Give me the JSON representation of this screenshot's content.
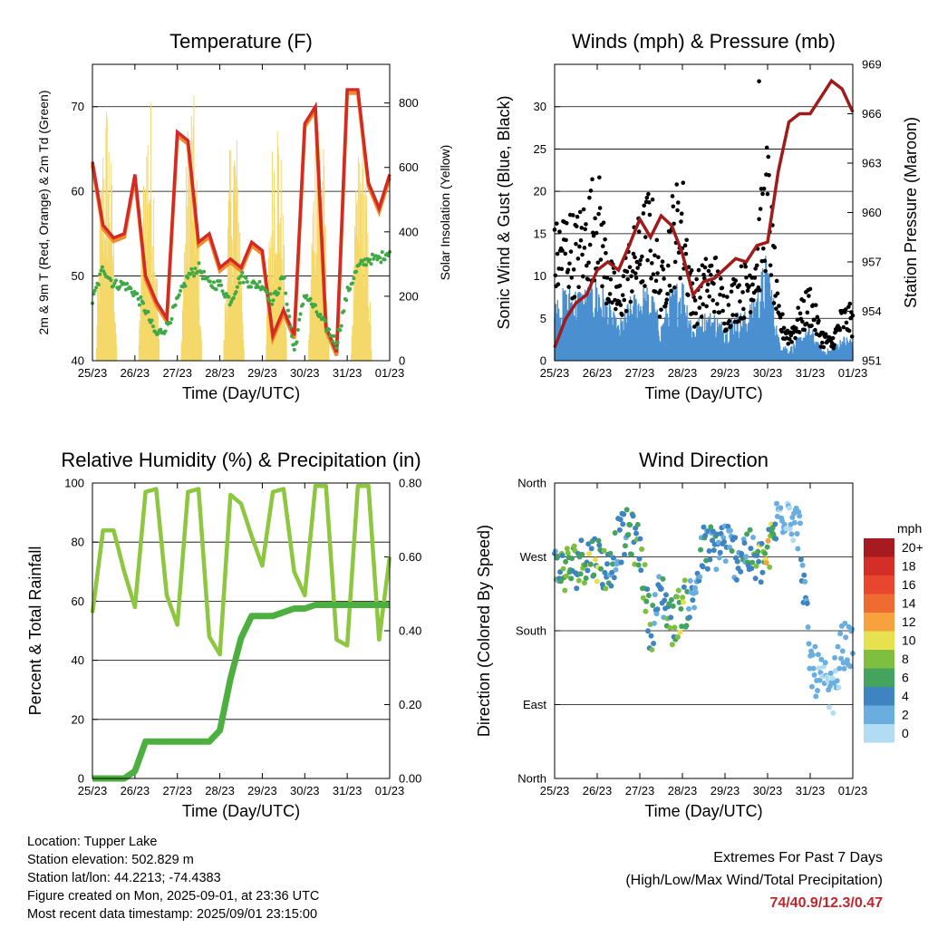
{
  "panels": {
    "temperature": {
      "title": "Temperature (F)",
      "xlabel": "Time (Day/UTC)",
      "ylabel_left": "2m & 9m T (Red, Orange) & 2m Td (Green)",
      "ylabel_right": "Solar Insolation (Yellow)",
      "xticks": [
        "25/23",
        "26/23",
        "27/23",
        "28/23",
        "29/23",
        "30/23",
        "31/23",
        "01/23"
      ],
      "yticks_left": [
        "40",
        "50",
        "60",
        "70"
      ],
      "yticks_right": [
        "0",
        "200",
        "400",
        "600",
        "800"
      ]
    },
    "winds": {
      "title": "Winds (mph) & Pressure (mb)",
      "xlabel": "Time (Day/UTC)",
      "ylabel_left": "Sonic Wind & Gust (Blue, Black)",
      "ylabel_right": "Station Pressure (Maroon)",
      "xticks": [
        "25/23",
        "26/23",
        "27/23",
        "28/23",
        "29/23",
        "30/23",
        "31/23",
        "01/23"
      ],
      "yticks_left": [
        "0",
        "5",
        "10",
        "15",
        "20",
        "25",
        "30"
      ],
      "yticks_right": [
        "951",
        "954",
        "957",
        "960",
        "963",
        "966",
        "969"
      ]
    },
    "humidity": {
      "title": "Relative Humidity (%) & Precipitation (in)",
      "xlabel": "Time (Day/UTC)",
      "ylabel_left": "Percent & Total Rainfall",
      "xticks": [
        "25/23",
        "26/23",
        "27/23",
        "28/23",
        "29/23",
        "30/23",
        "31/23",
        "01/23"
      ],
      "yticks_left": [
        "0",
        "20",
        "40",
        "60",
        "80",
        "100"
      ],
      "yticks_right": [
        "0.00",
        "0.20",
        "0.40",
        "0.60",
        "0.80"
      ]
    },
    "direction": {
      "title": "Wind Direction",
      "xlabel": "Time (Day/UTC)",
      "ylabel_left": "Direction (Colored By Speed)",
      "xticks": [
        "25/23",
        "26/23",
        "27/23",
        "28/23",
        "29/23",
        "30/23",
        "31/23",
        "01/23"
      ],
      "yticks_left": [
        "North",
        "East",
        "South",
        "West",
        "North"
      ],
      "legend_title": "mph",
      "legend_labels": [
        "20+",
        "18",
        "16",
        "14",
        "12",
        "10",
        "8",
        "6",
        "4",
        "2",
        "0"
      ],
      "legend_colors": [
        "#a51b1f",
        "#d42e27",
        "#e8462f",
        "#f06b32",
        "#f7a13f",
        "#e8e14f",
        "#7fbf3f",
        "#44a35c",
        "#3e84c0",
        "#6aaee0",
        "#b2dcf3"
      ]
    }
  },
  "colors": {
    "temp_2m": "#d42a25",
    "temp_9m": "#f08a2c",
    "dewpoint": "#3fa945",
    "insolation": "#f5d86a",
    "gust": "#000000",
    "wind": "#4a90d0",
    "pressure": "#a01c1c",
    "rh": "#8dc63f",
    "precip": "#4caf3f"
  },
  "chart_data": [
    {
      "type": "line",
      "title": "Temperature (F)",
      "xlabel": "Time (Day/UTC)",
      "ylabel": "2m & 9m T (Red, Orange) & 2m Td (Green)",
      "ylabel_right": "Solar Insolation (Yellow)",
      "x": [
        0,
        0.25,
        0.5,
        0.75,
        1.0,
        1.25,
        1.5,
        1.75,
        2.0,
        2.25,
        2.5,
        2.75,
        3.0,
        3.25,
        3.5,
        3.75,
        4.0,
        4.25,
        4.5,
        4.75,
        5.0,
        5.25,
        5.5,
        5.75,
        6.0,
        6.25,
        6.5,
        6.75,
        7.0
      ],
      "xlim": [
        0,
        7
      ],
      "ylim": [
        40,
        75
      ],
      "y2lim": [
        0,
        920
      ],
      "series": [
        {
          "name": "2m T",
          "values": [
            63.5,
            56,
            54.5,
            55,
            62,
            50,
            47,
            45,
            67,
            66,
            54,
            55,
            51,
            52,
            51,
            54,
            53,
            43,
            46,
            43,
            68,
            70,
            44,
            41,
            72,
            72,
            61,
            58,
            62
          ]
        },
        {
          "name": "2m Td",
          "values": [
            47,
            51,
            49,
            49,
            48,
            46,
            43,
            44,
            47,
            50,
            51,
            49,
            49,
            47,
            50,
            49,
            49,
            47,
            50,
            41,
            48,
            46,
            44,
            42,
            48,
            51,
            52,
            52,
            53
          ]
        },
        {
          "name": "Solar Insolation",
          "values": [
            0,
            400,
            850,
            0,
            0,
            420,
            860,
            0,
            0,
            880,
            850,
            0,
            0,
            440,
            800,
            0,
            0,
            460,
            860,
            0,
            0,
            900,
            880,
            0,
            0,
            750,
            500,
            0,
            0
          ]
        }
      ]
    },
    {
      "type": "line",
      "title": "Winds (mph) & Pressure (mb)",
      "xlabel": "Time (Day/UTC)",
      "ylabel": "Sonic Wind & Gust (Blue, Black)",
      "ylabel_right": "Station Pressure (Maroon)",
      "xlim": [
        0,
        7
      ],
      "ylim": [
        0,
        35
      ],
      "y2lim": [
        951,
        969
      ],
      "x": [
        0,
        0.25,
        0.5,
        0.75,
        1.0,
        1.25,
        1.5,
        1.75,
        2.0,
        2.25,
        2.5,
        2.75,
        3.0,
        3.25,
        3.5,
        3.75,
        4.0,
        4.25,
        4.5,
        4.75,
        5.0,
        5.25,
        5.5,
        5.75,
        6.0,
        6.25,
        6.5,
        6.75,
        7.0
      ],
      "series": [
        {
          "name": "Gust",
          "values": [
            12,
            14,
            13,
            15,
            18,
            10,
            7,
            11,
            13,
            16,
            8,
            15,
            17,
            7,
            9,
            10,
            6,
            8,
            9,
            12,
            20,
            5,
            3,
            5,
            7,
            3,
            2,
            5,
            5
          ]
        },
        {
          "name": "Wind",
          "values": [
            5,
            6,
            6,
            6,
            7,
            5,
            3,
            5,
            6,
            6,
            3,
            6,
            7,
            3,
            4,
            4,
            3,
            4,
            4,
            6,
            9,
            2,
            1,
            2,
            3,
            1,
            1,
            2,
            2
          ]
        },
        {
          "name": "Pressure",
          "values": [
            951.8,
            953.5,
            954.5,
            955,
            956.5,
            957,
            956.5,
            958,
            959.6,
            958.5,
            959.8,
            959.2,
            957.5,
            955,
            955.8,
            956,
            956.6,
            957.2,
            957,
            958,
            958.2,
            962.5,
            965.5,
            966,
            966,
            967,
            968,
            967.5,
            966.1
          ]
        }
      ]
    },
    {
      "type": "line",
      "title": "Relative Humidity (%) & Precipitation (in)",
      "xlabel": "Time (Day/UTC)",
      "ylabel": "Percent & Total Rainfall",
      "xlim": [
        0,
        7
      ],
      "ylim": [
        0,
        100
      ],
      "y2lim": [
        0,
        0.8
      ],
      "x": [
        0,
        0.25,
        0.5,
        0.75,
        1.0,
        1.25,
        1.5,
        1.75,
        2.0,
        2.25,
        2.5,
        2.75,
        3.0,
        3.25,
        3.5,
        3.75,
        4.0,
        4.25,
        4.5,
        4.75,
        5.0,
        5.25,
        5.5,
        5.75,
        6.0,
        6.25,
        6.5,
        6.75,
        7.0
      ],
      "series": [
        {
          "name": "RH",
          "values": [
            56,
            84,
            84,
            70,
            58,
            97,
            98,
            62,
            52,
            97,
            98,
            48,
            42,
            96,
            93,
            82,
            72,
            97,
            98,
            70,
            62,
            99,
            99,
            47,
            45,
            99,
            99,
            47,
            75
          ]
        },
        {
          "name": "Precipitation",
          "values": [
            0,
            0,
            0,
            0,
            0.02,
            0.1,
            0.1,
            0.1,
            0.1,
            0.1,
            0.1,
            0.1,
            0.13,
            0.27,
            0.38,
            0.44,
            0.44,
            0.44,
            0.45,
            0.46,
            0.46,
            0.47,
            0.47,
            0.47,
            0.47,
            0.47,
            0.47,
            0.47,
            0.47
          ]
        }
      ]
    },
    {
      "type": "scatter",
      "title": "Wind Direction",
      "xlabel": "Time (Day/UTC)",
      "ylabel": "Direction (Colored By Speed)",
      "xlim": [
        0,
        7
      ],
      "ylim": [
        0,
        360
      ],
      "legend_title": "mph",
      "x": [
        0,
        0.25,
        0.5,
        0.75,
        1.0,
        1.25,
        1.5,
        1.75,
        2.0,
        2.25,
        2.5,
        2.75,
        3.0,
        3.25,
        3.5,
        3.75,
        4.0,
        4.25,
        4.5,
        4.75,
        5.0,
        5.25,
        5.5,
        5.75,
        6.0,
        6.25,
        6.5,
        6.75,
        7.0
      ],
      "series": [
        {
          "name": "Direction",
          "values": [
            255,
            255,
            260,
            270,
            270,
            250,
            290,
            300,
            280,
            180,
            230,
            190,
            210,
            220,
            280,
            280,
            290,
            270,
            280,
            260,
            270,
            320,
            330,
            300,
            140,
            120,
            100,
            160,
            160
          ]
        },
        {
          "name": "Speed",
          "values": [
            5,
            6,
            6,
            6,
            7,
            5,
            3,
            5,
            6,
            6,
            3,
            6,
            7,
            3,
            4,
            4,
            3,
            4,
            4,
            6,
            9,
            2,
            1,
            2,
            3,
            1,
            1,
            2,
            2
          ]
        }
      ]
    }
  ],
  "station": {
    "location": "Location: Tupper Lake",
    "elevation": "Station elevation: 502.829 m",
    "latlon": "Station lat/lon: 44.2213; -74.4383",
    "created": "Figure created on Mon, 2025-09-01, at 23:36 UTC",
    "latest": "Most recent data timestamp: 2025/09/01 23:15:00"
  },
  "extremes": {
    "title": "Extremes For Past 7 Days",
    "subtitle": "(High/Low/Max Wind/Total Precipitation)",
    "values": "74/40.9/12.3/0.47"
  }
}
